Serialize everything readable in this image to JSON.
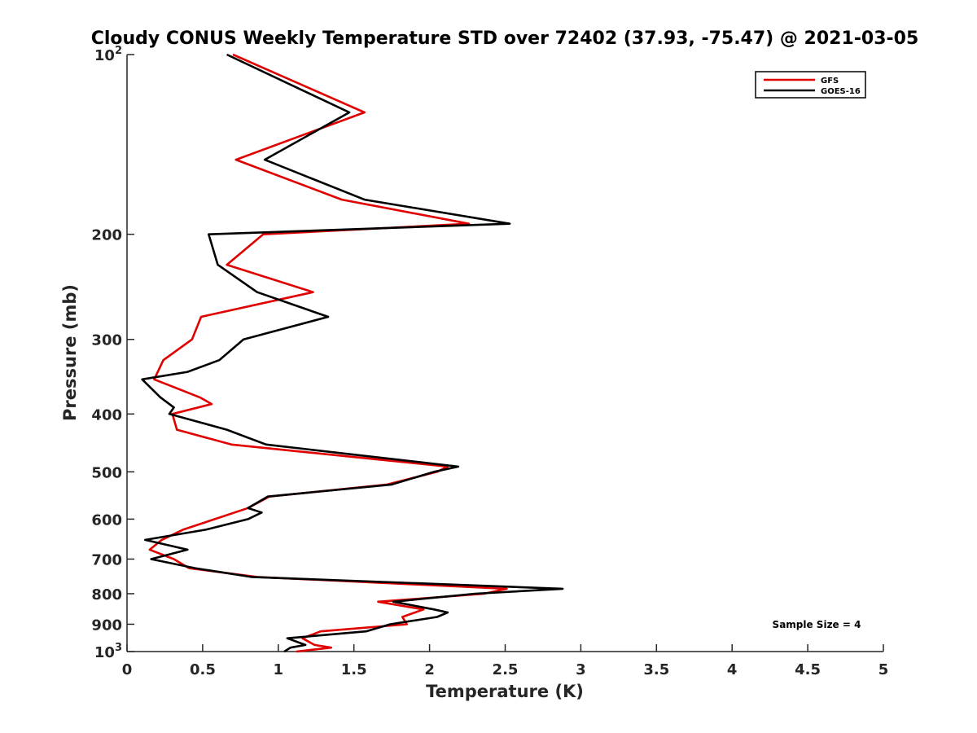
{
  "chart_data": {
    "type": "line",
    "title": "Cloudy CONUS Weekly Temperature STD over 72402 (37.93, -75.47) @ 2021-03-05",
    "xlabel": "Temperature (K)",
    "ylabel": "Pressure (mb)",
    "xlim": [
      0,
      5
    ],
    "ylim": [
      100,
      1000
    ],
    "y_scale": "log",
    "y_reversed": true,
    "grid": false,
    "legend_position": "top-right",
    "x_ticks": [
      {
        "value": 0,
        "label": "0"
      },
      {
        "value": 0.5,
        "label": "0.5"
      },
      {
        "value": 1,
        "label": "1"
      },
      {
        "value": 1.5,
        "label": "1.5"
      },
      {
        "value": 2,
        "label": "2"
      },
      {
        "value": 2.5,
        "label": "2.5"
      },
      {
        "value": 3,
        "label": "3"
      },
      {
        "value": 3.5,
        "label": "3.5"
      },
      {
        "value": 4,
        "label": "4"
      },
      {
        "value": 4.5,
        "label": "4.5"
      },
      {
        "value": 5,
        "label": "5"
      }
    ],
    "y_ticks": [
      {
        "value": 100,
        "label": "10",
        "sup": "2"
      },
      {
        "value": 200,
        "label": "200"
      },
      {
        "value": 300,
        "label": "300"
      },
      {
        "value": 400,
        "label": "400"
      },
      {
        "value": 500,
        "label": "500"
      },
      {
        "value": 600,
        "label": "600"
      },
      {
        "value": 700,
        "label": "700"
      },
      {
        "value": 800,
        "label": "800"
      },
      {
        "value": 900,
        "label": "900"
      },
      {
        "value": 1000,
        "label": "10",
        "sup": "3"
      }
    ],
    "annotation": "Sample Size = 4",
    "series": [
      {
        "name": "GFS",
        "color": "#e00000",
        "points": [
          [
            0.7,
            100
          ],
          [
            1.57,
            125
          ],
          [
            0.72,
            150
          ],
          [
            1.42,
            175
          ],
          [
            2.26,
            192
          ],
          [
            0.9,
            200
          ],
          [
            0.66,
            225
          ],
          [
            1.23,
            250
          ],
          [
            0.49,
            275
          ],
          [
            0.43,
            300
          ],
          [
            0.24,
            325
          ],
          [
            0.18,
            350
          ],
          [
            0.48,
            375
          ],
          [
            0.56,
            385
          ],
          [
            0.3,
            400
          ],
          [
            0.33,
            425
          ],
          [
            0.69,
            450
          ],
          [
            2.12,
            490
          ],
          [
            2.05,
            500
          ],
          [
            1.72,
            525
          ],
          [
            0.94,
            550
          ],
          [
            0.8,
            575
          ],
          [
            0.58,
            600
          ],
          [
            0.37,
            625
          ],
          [
            0.23,
            650
          ],
          [
            0.15,
            675
          ],
          [
            0.31,
            700
          ],
          [
            0.41,
            725
          ],
          [
            0.86,
            750
          ],
          [
            2.51,
            785
          ],
          [
            2.36,
            800
          ],
          [
            1.66,
            825
          ],
          [
            1.96,
            850
          ],
          [
            1.82,
            875
          ],
          [
            1.85,
            900
          ],
          [
            1.28,
            925
          ],
          [
            1.16,
            950
          ],
          [
            1.24,
            975
          ],
          [
            1.35,
            985
          ],
          [
            1.12,
            1000
          ]
        ]
      },
      {
        "name": "GOES-16",
        "color": "#000000",
        "points": [
          [
            0.66,
            100
          ],
          [
            1.47,
            125
          ],
          [
            0.91,
            150
          ],
          [
            1.57,
            175
          ],
          [
            2.53,
            192
          ],
          [
            0.54,
            200
          ],
          [
            0.6,
            225
          ],
          [
            0.86,
            250
          ],
          [
            1.33,
            275
          ],
          [
            0.77,
            300
          ],
          [
            0.61,
            325
          ],
          [
            0.4,
            340
          ],
          [
            0.1,
            350
          ],
          [
            0.22,
            375
          ],
          [
            0.31,
            390
          ],
          [
            0.28,
            400
          ],
          [
            0.66,
            425
          ],
          [
            0.92,
            450
          ],
          [
            2.19,
            490
          ],
          [
            2.03,
            500
          ],
          [
            1.75,
            525
          ],
          [
            0.93,
            550
          ],
          [
            0.8,
            575
          ],
          [
            0.89,
            585
          ],
          [
            0.8,
            600
          ],
          [
            0.52,
            625
          ],
          [
            0.12,
            650
          ],
          [
            0.4,
            675
          ],
          [
            0.16,
            700
          ],
          [
            0.45,
            725
          ],
          [
            0.82,
            750
          ],
          [
            2.88,
            785
          ],
          [
            2.3,
            800
          ],
          [
            1.76,
            825
          ],
          [
            2.03,
            850
          ],
          [
            2.12,
            860
          ],
          [
            2.05,
            875
          ],
          [
            1.74,
            900
          ],
          [
            1.58,
            925
          ],
          [
            1.06,
            950
          ],
          [
            1.18,
            975
          ],
          [
            1.08,
            985
          ],
          [
            1.04,
            1000
          ]
        ]
      }
    ]
  }
}
